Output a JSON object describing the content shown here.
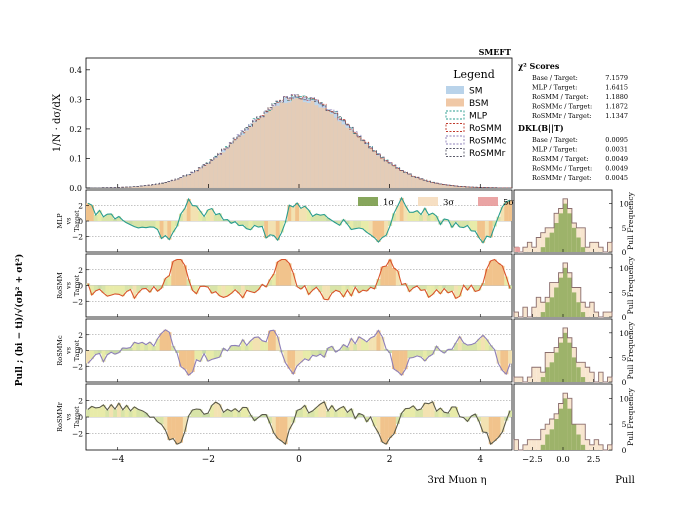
{
  "chart_data": {
    "type": "histogram-with-pull-panels",
    "title": "SMEFT",
    "main_panel": {
      "ylabel": "1/N · dσ/dX",
      "y_ticks": [
        "0.0",
        "0.1",
        "0.2",
        "0.3",
        "0.4"
      ],
      "ylim": [
        0,
        0.44
      ],
      "x_range": [
        -4.7,
        4.7
      ],
      "peak_value": 0.31,
      "peak_x": 0.0,
      "legend": {
        "title": "Legend",
        "entries": [
          "SM",
          "BSM",
          "MLP",
          "RoSMM",
          "RoSMMc",
          "RoSMMr"
        ]
      }
    },
    "scores": {
      "chi2_title": "χ² Scores",
      "chi2": [
        {
          "label": "Base / Target:",
          "value": "7.1579"
        },
        {
          "label": "MLP / Target:",
          "value": "1.6415"
        },
        {
          "label": "RoSMM / Target:",
          "value": "1.1880"
        },
        {
          "label": "RoSMMc / Target:",
          "value": "1.1872"
        },
        {
          "label": "RoSMMr / Target:",
          "value": "1.1347"
        }
      ],
      "dkl_title": "DKL(B||T)",
      "dkl": [
        {
          "label": "Base / Target:",
          "value": "0.0095"
        },
        {
          "label": "MLP / Target:",
          "value": "0.0031"
        },
        {
          "label": "RoSMM / Target:",
          "value": "0.0049"
        },
        {
          "label": "RoSMMc / Target:",
          "value": "0.0049"
        },
        {
          "label": "RoSMMr / Target:",
          "value": "0.0045"
        }
      ]
    },
    "pull_label": "Pull ; (bi − ti)/√(σb² + σt²)",
    "sigma_legend": [
      "1σ",
      "3σ",
      "5σ"
    ],
    "pull_panels": [
      {
        "name": "MLP",
        "label_lines": [
          "MLP",
          "vs",
          "Target"
        ],
        "color": "#2a9d8f",
        "y_ticks": [
          "2",
          "0",
          "−2"
        ],
        "hist_y_ticks": [
          "0",
          "5",
          "10"
        ]
      },
      {
        "name": "RoSMM",
        "label_lines": [
          "RoSMM",
          "vs",
          "Target"
        ],
        "color": "#d9532a",
        "y_ticks": [
          "2",
          "0",
          "−2"
        ],
        "hist_y_ticks": [
          "0",
          "5",
          "10"
        ]
      },
      {
        "name": "RoSMMc",
        "label_lines": [
          "RoSMMc",
          "vs",
          "Target"
        ],
        "color": "#8d7fb8",
        "y_ticks": [
          "2",
          "0",
          "−2"
        ],
        "hist_y_ticks": [
          "0",
          "5",
          "10"
        ]
      },
      {
        "name": "RoSMMr",
        "label_lines": [
          "RoSMMr",
          "vs",
          "Target"
        ],
        "color": "#5a5a4a",
        "y_ticks": [
          "2",
          "0",
          "−2"
        ],
        "hist_y_ticks": [
          "0",
          "5",
          "10"
        ]
      }
    ],
    "x_ticks": [
      "−4",
      "−2",
      "0",
      "2",
      "4"
    ],
    "xlabel": "3rd Muon η",
    "pull_hist_x_ticks": [
      "−2.5",
      "0.0",
      "2.5"
    ],
    "pull_hist_xlabel": "Pull",
    "pull_hist_ylabel": "Pull Frequency",
    "pull_hist_counts": [
      1,
      0,
      1,
      1,
      2,
      3,
      3,
      5,
      6,
      7,
      9,
      11,
      9,
      6,
      5,
      4,
      2,
      2,
      1,
      1,
      0,
      1
    ],
    "pull_hist_centre_counts": [
      0,
      0,
      0,
      0,
      0,
      0,
      1,
      3,
      4,
      6,
      8,
      10,
      8,
      5,
      3,
      1,
      0,
      0,
      0,
      0,
      0,
      0
    ]
  }
}
